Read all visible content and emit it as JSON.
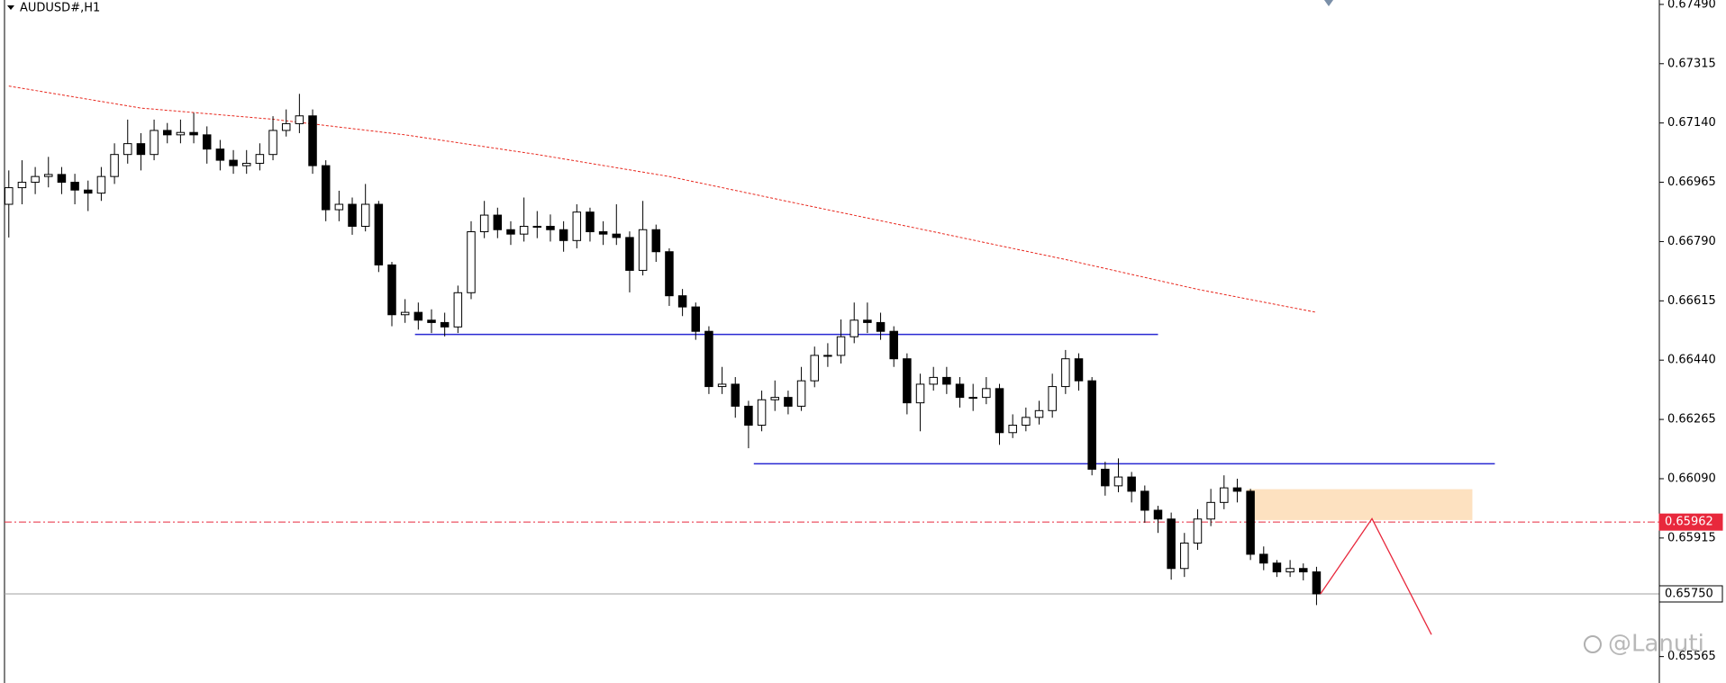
{
  "chart_data": {
    "type": "candlestick",
    "title": "AUDUSD#,H1",
    "open": [
      0.669,
      0.66949,
      0.66965,
      0.66982,
      0.66988,
      0.66965,
      0.66942,
      0.66933,
      0.66982,
      0.67047,
      0.67079,
      0.67047,
      0.67118,
      0.67105,
      0.67112,
      0.67105,
      0.67063,
      0.6703,
      0.67014,
      0.67021,
      0.67047,
      0.67118,
      0.67138,
      0.67161,
      0.67014,
      0.66884,
      0.669,
      0.66835,
      0.669,
      0.66721,
      0.66574,
      0.66581,
      0.66558,
      0.66551,
      0.66538,
      0.66639,
      0.66819,
      0.66868,
      0.66825,
      0.66812,
      0.66835,
      0.66835,
      0.66825,
      0.66793,
      0.66877,
      0.66819,
      0.66812,
      0.66802,
      0.66705,
      0.66825,
      0.6676,
      0.6663,
      0.66597,
      0.66525,
      0.66362,
      0.66369,
      0.66304,
      0.66248,
      0.66323,
      0.6633,
      0.66304,
      0.66379,
      0.66454,
      0.66454,
      0.66509,
      0.66558,
      0.66551,
      0.66525,
      0.66444,
      0.66314,
      0.66369,
      0.66389,
      0.66369,
      0.6633,
      0.6633,
      0.66356,
      0.66226,
      0.66248,
      0.66271,
      0.66291,
      0.66362,
      0.66444,
      0.66379,
      0.66118,
      0.66069,
      0.66095,
      0.66053,
      0.65997,
      0.65971,
      0.65825,
      0.659,
      0.65971,
      0.6602,
      0.66063,
      0.66053,
      0.65867,
      0.65841,
      0.65815,
      0.65825,
      0.65815
    ],
    "high": [
      0.67,
      0.6703,
      0.6701,
      0.6704,
      0.6701,
      0.6699,
      0.6697,
      0.6701,
      0.6708,
      0.6715,
      0.6711,
      0.6715,
      0.6714,
      0.6715,
      0.6717,
      0.6713,
      0.6709,
      0.6706,
      0.6706,
      0.6708,
      0.6716,
      0.6718,
      0.67226,
      0.6718,
      0.6703,
      0.6694,
      0.6692,
      0.6696,
      0.6691,
      0.6673,
      0.6662,
      0.6661,
      0.6659,
      0.6658,
      0.6666,
      0.6685,
      0.6691,
      0.6689,
      0.6685,
      0.6692,
      0.6688,
      0.6687,
      0.6685,
      0.669,
      0.6689,
      0.6685,
      0.669,
      0.6682,
      0.6691,
      0.6684,
      0.6677,
      0.6665,
      0.6661,
      0.6654,
      0.6642,
      0.6639,
      0.6632,
      0.6635,
      0.6638,
      0.6635,
      0.6642,
      0.6648,
      0.6649,
      0.6656,
      0.6661,
      0.6661,
      0.6658,
      0.6654,
      0.6646,
      0.664,
      0.6642,
      0.6642,
      0.6639,
      0.6637,
      0.6639,
      0.6637,
      0.6628,
      0.663,
      0.6632,
      0.664,
      0.6647,
      0.6646,
      0.6639,
      0.6614,
      0.6615,
      0.6611,
      0.6607,
      0.6601,
      0.6599,
      0.6593,
      0.66,
      0.6606,
      0.661,
      0.6609,
      0.6606,
      0.6589,
      0.6585,
      0.6585,
      0.6584,
      0.6583
    ],
    "low": [
      0.66802,
      0.669,
      0.6693,
      0.6695,
      0.6693,
      0.669,
      0.6688,
      0.6691,
      0.6696,
      0.6702,
      0.67,
      0.6703,
      0.6708,
      0.6708,
      0.6708,
      0.6702,
      0.67,
      0.6699,
      0.6699,
      0.67,
      0.6703,
      0.671,
      0.6711,
      0.6699,
      0.6685,
      0.6685,
      0.6681,
      0.6682,
      0.667,
      0.6654,
      0.6655,
      0.6653,
      0.6652,
      0.6651,
      0.6652,
      0.6662,
      0.668,
      0.668,
      0.6678,
      0.6679,
      0.668,
      0.6679,
      0.6676,
      0.6677,
      0.6679,
      0.6678,
      0.6678,
      0.6664,
      0.6669,
      0.6673,
      0.666,
      0.6657,
      0.665,
      0.6634,
      0.6634,
      0.6627,
      0.6618,
      0.6623,
      0.6629,
      0.6628,
      0.6629,
      0.6636,
      0.6642,
      0.6643,
      0.6649,
      0.6652,
      0.665,
      0.6642,
      0.6628,
      0.6623,
      0.6635,
      0.6634,
      0.663,
      0.6629,
      0.6631,
      0.6619,
      0.6621,
      0.6623,
      0.6625,
      0.6627,
      0.6634,
      0.6635,
      0.661,
      0.6604,
      0.6605,
      0.6602,
      0.6596,
      0.6593,
      0.65792,
      0.658,
      0.6588,
      0.6595,
      0.66,
      0.6602,
      0.6585,
      0.6582,
      0.658,
      0.658,
      0.6579,
      0.65717
    ],
    "close": [
      0.66949,
      0.66965,
      0.66982,
      0.66988,
      0.66965,
      0.66942,
      0.66933,
      0.66982,
      0.67047,
      0.67079,
      0.67047,
      0.67118,
      0.67105,
      0.67112,
      0.67105,
      0.67063,
      0.6703,
      0.67014,
      0.67021,
      0.67047,
      0.67118,
      0.67138,
      0.67161,
      0.67014,
      0.66884,
      0.669,
      0.66835,
      0.669,
      0.66721,
      0.66574,
      0.66581,
      0.66558,
      0.66551,
      0.66538,
      0.66639,
      0.66819,
      0.66868,
      0.66825,
      0.66812,
      0.66835,
      0.66835,
      0.66825,
      0.66793,
      0.66877,
      0.66819,
      0.66812,
      0.66802,
      0.66705,
      0.66825,
      0.6676,
      0.6663,
      0.66597,
      0.66525,
      0.66362,
      0.66369,
      0.66304,
      0.66248,
      0.66323,
      0.6633,
      0.66304,
      0.66379,
      0.66454,
      0.66454,
      0.66509,
      0.66558,
      0.66551,
      0.66525,
      0.66444,
      0.66314,
      0.66369,
      0.66389,
      0.66369,
      0.6633,
      0.6633,
      0.66356,
      0.66226,
      0.66248,
      0.66271,
      0.66291,
      0.66362,
      0.66444,
      0.66379,
      0.66118,
      0.66069,
      0.66095,
      0.66053,
      0.65997,
      0.65971,
      0.65825,
      0.659,
      0.65971,
      0.6602,
      0.66063,
      0.66053,
      0.65867,
      0.65841,
      0.65815,
      0.65825,
      0.65815,
      0.6575
    ],
    "up_color": "#ffffff",
    "down_color": "#000000",
    "wick_color": "#000000",
    "ylim": [
      0.65487,
      0.67503
    ],
    "yticks": [
      {
        "value": 0.6749,
        "label": "0.67490"
      },
      0.67315,
      {
        "value": 0.6714,
        "label": "0.67140"
      },
      0.66965,
      {
        "value": 0.6679,
        "label": "0.66790"
      },
      0.66615,
      {
        "value": 0.6644,
        "label": "0.66440"
      },
      0.66265,
      {
        "value": 0.6609,
        "label": "0.66090"
      },
      0.65915,
      0.65565
    ],
    "moving_average": {
      "color": "#e8281e",
      "x": [
        0,
        10,
        20,
        30,
        40,
        50,
        60,
        70,
        80,
        90,
        99
      ],
      "values": [
        0.67249,
        0.67184,
        0.67151,
        0.67105,
        0.67047,
        0.66982,
        0.669,
        0.66819,
        0.66737,
        0.66649,
        0.66581
      ]
    },
    "levels": [
      {
        "value": 0.66516,
        "from": 30.75,
        "to": 87,
        "color": "#2828d2"
      },
      {
        "value": 0.66134,
        "from": 56.4,
        "to": 112.5,
        "color": "#2828d2"
      }
    ],
    "zone": {
      "from": 93.75,
      "to": 110.8,
      "low": 0.65968,
      "high": 0.66059,
      "color": "#fde1c0"
    },
    "projection": {
      "color": "#e8283c",
      "x": [
        99.3,
        103.2,
        107.7
      ],
      "values": [
        0.6575,
        0.65972,
        0.6563
      ]
    },
    "alert_line": {
      "value": 0.65962,
      "label": "0.65962",
      "color": "#e8283c"
    },
    "current_price": {
      "value": 0.6575,
      "label": "0.65750",
      "color": "#a0a0a0"
    },
    "watermark": "@Lanuti"
  }
}
